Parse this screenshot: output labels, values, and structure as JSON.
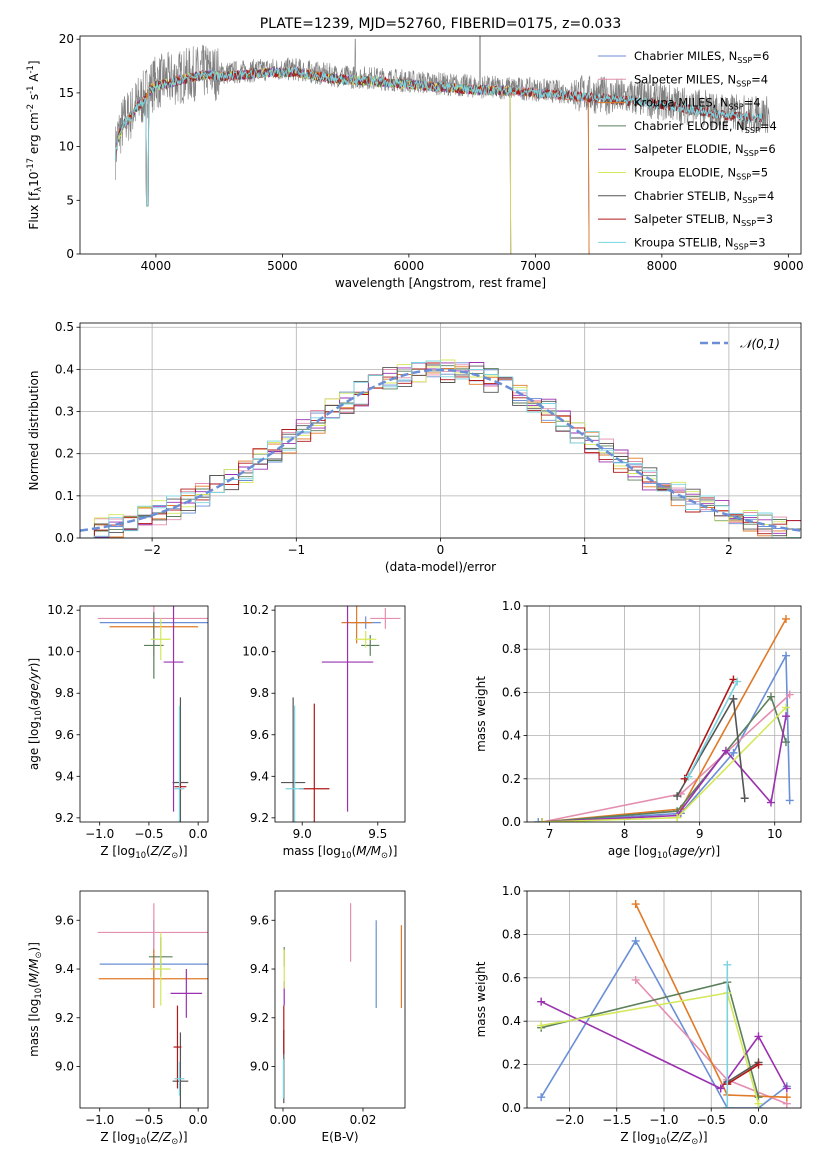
{
  "colors": [
    "#6a8fd6",
    "#e48fb0",
    "#e07a28",
    "#5c7f5c",
    "#9b30b0",
    "#d4e85a",
    "#555555",
    "#b01818",
    "#7ad4e0"
  ],
  "chart_data": [
    {
      "id": "spectrum",
      "type": "line",
      "title": "PLATE=1239, MJD=52760, FIBERID=0175, z=0.033",
      "xlabel": "wavelength [Angstrom, rest frame]",
      "ylabel": "Flux [f$_\\lambda$10$^{-17}$ erg cm$^{-2}$ s$^{-1}$ A$^{-1}$]",
      "xlim": [
        3400,
        9100
      ],
      "ylim": [
        0,
        20.3
      ],
      "xticks": [
        4000,
        5000,
        6000,
        7000,
        8000,
        9000
      ],
      "yticks": [
        0,
        5,
        10,
        15,
        20
      ],
      "grid": false,
      "legend_loc": "top-right",
      "data_series": {
        "name": "data",
        "color": "#808080",
        "x": [
          3680,
          3700,
          3750,
          3800,
          3850,
          3900,
          3950,
          4000,
          4100,
          4200,
          4300,
          4400,
          4500,
          4700,
          4900,
          5100,
          5300,
          5500,
          5700,
          5900,
          6100,
          6300,
          6500,
          6700,
          6900,
          7100,
          7300,
          7500,
          7700,
          7900,
          8100,
          8300,
          8500,
          8700,
          8850
        ],
        "y": [
          9.5,
          11.0,
          12.5,
          13.0,
          14.0,
          14.5,
          15.5,
          16.0,
          16.2,
          16.5,
          16.8,
          17.0,
          16.8,
          17.0,
          17.2,
          17.2,
          16.8,
          16.5,
          16.4,
          16.2,
          16.0,
          15.8,
          15.6,
          15.5,
          15.4,
          15.2,
          15.0,
          14.8,
          14.6,
          14.4,
          14.0,
          13.6,
          13.2,
          13.0,
          13.0
        ]
      },
      "series": [
        {
          "name": "Chabrier MILES, N$_{SSP}$=6",
          "color": "#6a8fd6",
          "end": 7420
        },
        {
          "name": "Salpeter MILES, N$_{SSP}$=4",
          "color": "#e48fb0",
          "end": 7420
        },
        {
          "name": "Kroupa MILES, N$_{SSP}$=4",
          "color": "#e07a28",
          "end": 7420
        },
        {
          "name": "Chabrier ELODIE, N$_{SSP}$=4",
          "color": "#5c7f5c",
          "end": 6800
        },
        {
          "name": "Salpeter ELODIE, N$_{SSP}$=6",
          "color": "#9b30b0",
          "end": 6800
        },
        {
          "name": "Kroupa ELODIE, N$_{SSP}$=5",
          "color": "#d4e85a",
          "end": 6800
        },
        {
          "name": "Chabrier STELIB, N$_{SSP}$=4",
          "color": "#555555",
          "end": 8800
        },
        {
          "name": "Salpeter STELIB, N$_{SSP}$=3",
          "color": "#b01818",
          "end": 8800
        },
        {
          "name": "Kroupa STELIB, N$_{SSP}$=3",
          "color": "#7ad4e0",
          "end": 8800
        }
      ]
    },
    {
      "id": "residuals",
      "type": "histogram",
      "xlabel": "(data-model)/error",
      "ylabel": "Normed distribution",
      "xlim": [
        -2.5,
        2.5
      ],
      "ylim": [
        0,
        0.51
      ],
      "xticks": [
        -2,
        -1,
        0,
        1,
        2
      ],
      "yticks": [
        0.0,
        0.1,
        0.2,
        0.3,
        0.4,
        0.5
      ],
      "grid": true,
      "legend_loc": "top-right",
      "gaussian": {
        "name": "$\\mathcal{N}(0,1)$",
        "color": "#6a8fd6",
        "mean": 0,
        "sigma": 1
      },
      "bin_width": 0.1
    },
    {
      "id": "age-vs-z",
      "type": "errorbar",
      "xlabel": "Z [log$_{10}$($Z/Z_\\odot$)]",
      "ylabel": "age  [log$_{10}$($age/yr$)]",
      "xlim": [
        -1.2,
        0.1
      ],
      "ylim": [
        9.18,
        10.22
      ],
      "xticks": [
        -1.0,
        -0.5,
        0.0
      ],
      "yticks": [
        9.2,
        9.4,
        9.6,
        9.8,
        10.0,
        10.2
      ],
      "points": [
        {
          "x": -0.45,
          "xerr": 0.55,
          "y": 10.14,
          "yerr": 0.03
        },
        {
          "x": -0.45,
          "xerr": 0.57,
          "y": 10.16,
          "yerr": 0.18
        },
        {
          "x": -0.45,
          "xerr": 0.45,
          "y": 10.12,
          "yerr": 0.03
        },
        {
          "x": -0.45,
          "xerr": 0.1,
          "y": 10.03,
          "yerr": 0.16
        },
        {
          "x": -0.25,
          "xerr": 0.1,
          "y": 9.95,
          "yerr": 0.72
        },
        {
          "x": -0.38,
          "xerr": 0.1,
          "y": 10.06,
          "yerr": 0.1
        },
        {
          "x": -0.18,
          "xerr": 0.08,
          "y": 9.37,
          "yerr": 0.41
        },
        {
          "x": -0.18,
          "xerr": 0.06,
          "y": 9.35,
          "yerr": 0.02
        },
        {
          "x": -0.19,
          "xerr": 0.05,
          "y": 9.34,
          "yerr": 0.4
        }
      ]
    },
    {
      "id": "age-vs-mass",
      "type": "errorbar",
      "xlabel": "mass [log$_{10}$($M/M_\\odot$)]",
      "ylabel": "",
      "xlim": [
        8.82,
        9.68
      ],
      "ylim": [
        9.18,
        10.22
      ],
      "xticks": [
        9.0,
        9.5
      ],
      "yticks": [
        9.2,
        9.4,
        9.6,
        9.8,
        10.0,
        10.2
      ],
      "points": [
        {
          "x": 9.42,
          "xerr": 0.1,
          "y": 10.14,
          "yerr": 0.03
        },
        {
          "x": 9.55,
          "xerr": 0.1,
          "y": 10.16,
          "yerr": 0.05
        },
        {
          "x": 9.36,
          "xerr": 0.1,
          "y": 10.14,
          "yerr": 0.1
        },
        {
          "x": 9.45,
          "xerr": 0.06,
          "y": 10.03,
          "yerr": 0.05
        },
        {
          "x": 9.3,
          "xerr": 0.17,
          "y": 9.95,
          "yerr": 0.72
        },
        {
          "x": 9.42,
          "xerr": 0.07,
          "y": 10.06,
          "yerr": 0.04
        },
        {
          "x": 8.94,
          "xerr": 0.08,
          "y": 9.37,
          "yerr": 0.41
        },
        {
          "x": 9.08,
          "xerr": 0.1,
          "y": 9.34,
          "yerr": 0.41
        },
        {
          "x": 8.95,
          "xerr": 0.06,
          "y": 9.34,
          "yerr": 0.4
        }
      ]
    },
    {
      "id": "weight-vs-age",
      "type": "line",
      "xlabel": "age  [log$_{10}$($age/yr$)]",
      "ylabel": "mass weight",
      "xlim": [
        6.7,
        10.35
      ],
      "ylim": [
        0,
        1.0
      ],
      "xticks": [
        7,
        8,
        9,
        10
      ],
      "yticks": [
        0.0,
        0.2,
        0.4,
        0.6,
        0.8,
        1.0
      ],
      "grid": true,
      "series": [
        {
          "x": [
            6.85,
            8.75,
            9.45,
            10.15,
            10.2
          ],
          "y": [
            0.0,
            0.04,
            0.32,
            0.77,
            0.1
          ]
        },
        {
          "x": [
            6.9,
            8.75,
            10.2
          ],
          "y": [
            0.0,
            0.13,
            0.59
          ]
        },
        {
          "x": [
            6.9,
            8.75,
            10.15
          ],
          "y": [
            0.0,
            0.06,
            0.94
          ]
        },
        {
          "x": [
            6.9,
            8.7,
            9.95,
            10.15
          ],
          "y": [
            0.0,
            0.05,
            0.58,
            0.37
          ]
        },
        {
          "x": [
            6.9,
            8.7,
            9.35,
            9.95,
            10.15
          ],
          "y": [
            0.0,
            0.03,
            0.33,
            0.09,
            0.49
          ]
        },
        {
          "x": [
            6.9,
            8.7,
            10.15
          ],
          "y": [
            0.0,
            0.02,
            0.53
          ]
        },
        {
          "x": [
            8.7,
            9.45,
            9.6
          ],
          "y": [
            0.12,
            0.57,
            0.11
          ]
        },
        {
          "x": [
            8.8,
            9.45
          ],
          "y": [
            0.2,
            0.66
          ]
        },
        {
          "x": [
            8.85,
            9.5
          ],
          "y": [
            0.21,
            0.65
          ]
        }
      ]
    },
    {
      "id": "mass-vs-z",
      "type": "errorbar",
      "xlabel": "Z [log$_{10}$($Z/Z_\\odot$)]",
      "ylabel": "mass [log$_{10}$($M/M_\\odot$)]",
      "xlim": [
        -1.2,
        0.1
      ],
      "ylim": [
        8.83,
        9.72
      ],
      "xticks": [
        -1.0,
        -0.5,
        0.0
      ],
      "yticks": [
        9.0,
        9.2,
        9.4,
        9.6
      ],
      "points": [
        {
          "x": -0.45,
          "xerr": 0.55,
          "y": 9.42,
          "yerr": 0.18
        },
        {
          "x": -0.45,
          "xerr": 0.57,
          "y": 9.55,
          "yerr": 0.12
        },
        {
          "x": -0.45,
          "xerr": 0.56,
          "y": 9.36,
          "yerr": 0.12
        },
        {
          "x": -0.38,
          "xerr": 0.12,
          "y": 9.45,
          "yerr": 0.08
        },
        {
          "x": -0.12,
          "xerr": 0.16,
          "y": 9.3,
          "yerr": 0.1
        },
        {
          "x": -0.38,
          "xerr": 0.1,
          "y": 9.4,
          "yerr": 0.15
        },
        {
          "x": -0.18,
          "xerr": 0.08,
          "y": 8.94,
          "yerr": 0.2
        },
        {
          "x": -0.21,
          "xerr": 0.04,
          "y": 9.08,
          "yerr": 0.17
        },
        {
          "x": -0.19,
          "xerr": 0.05,
          "y": 8.95,
          "yerr": 0.07
        }
      ]
    },
    {
      "id": "mass-vs-ebv",
      "type": "errorbar",
      "xlabel": "E(B-V)",
      "ylabel": "",
      "xlim": [
        -0.002,
        0.0305
      ],
      "ylim": [
        8.83,
        9.72
      ],
      "xticks": [
        0.0,
        0.02
      ],
      "yticks": [
        9.0,
        9.2,
        9.4,
        9.6
      ],
      "points": [
        {
          "x": 0.0233,
          "xerr": 0,
          "y": 9.42,
          "yerr": 0.18
        },
        {
          "x": 0.0169,
          "xerr": 0,
          "y": 9.55,
          "yerr": 0.12
        },
        {
          "x": 0.0296,
          "xerr": 0,
          "y": 9.41,
          "yerr": 0.17
        },
        {
          "x": 0.0003,
          "xerr": 0,
          "y": 9.45,
          "yerr": 0.04
        },
        {
          "x": 0.0003,
          "xerr": 0,
          "y": 9.3,
          "yerr": 0.05
        },
        {
          "x": 0.0003,
          "xerr": 0,
          "y": 9.4,
          "yerr": 0.08
        },
        {
          "x": 0.0002,
          "xerr": 0,
          "y": 9.0,
          "yerr": 0.15
        },
        {
          "x": 0.0002,
          "xerr": 0,
          "y": 9.15,
          "yerr": 0.1
        },
        {
          "x": 0.0001,
          "xerr": 0,
          "y": 8.95,
          "yerr": 0.08
        }
      ]
    },
    {
      "id": "weight-vs-z",
      "type": "line",
      "xlabel": "Z [log$_{10}$($Z/Z_\\odot$)]",
      "ylabel": "mass weight",
      "xlim": [
        -2.45,
        0.45
      ],
      "ylim": [
        0,
        1.0
      ],
      "xticks": [
        -2.0,
        -1.5,
        -1.0,
        -0.5,
        0.0
      ],
      "yticks": [
        0.0,
        0.2,
        0.4,
        0.6,
        0.8,
        1.0
      ],
      "grid": true,
      "series": [
        {
          "x": [
            -2.3,
            -1.3,
            -0.33,
            0.0,
            0.3
          ],
          "y": [
            0.05,
            0.77,
            0.0,
            0.0,
            0.1
          ]
        },
        {
          "x": [
            -1.3,
            -0.33,
            0.3
          ],
          "y": [
            0.59,
            0.13,
            0.02
          ]
        },
        {
          "x": [
            -1.3,
            -0.33,
            0.3
          ],
          "y": [
            0.94,
            0.06,
            0.05
          ]
        },
        {
          "x": [
            -2.3,
            -0.33,
            0.0
          ],
          "y": [
            0.37,
            0.58,
            0.05
          ]
        },
        {
          "x": [
            -2.3,
            -0.4,
            0.0,
            0.3
          ],
          "y": [
            0.49,
            0.09,
            0.33,
            0.09
          ]
        },
        {
          "x": [
            -2.3,
            -0.33,
            0.0
          ],
          "y": [
            0.38,
            0.53,
            0.02
          ]
        },
        {
          "x": [
            -0.33,
            0.0
          ],
          "y": [
            0.12,
            0.21
          ]
        },
        {
          "x": [
            -0.33,
            0.0
          ],
          "y": [
            0.11,
            0.2
          ]
        },
        {
          "x": [
            -0.33,
            -0.33
          ],
          "y": [
            0.0,
            0.66
          ]
        }
      ]
    }
  ]
}
